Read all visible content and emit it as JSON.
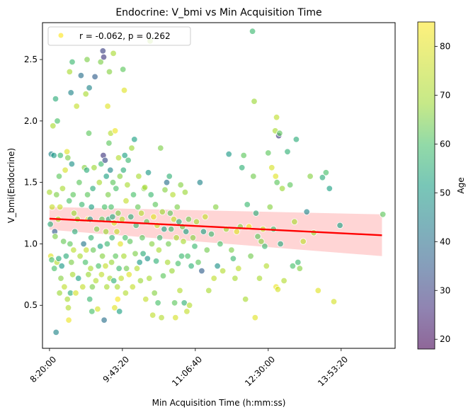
{
  "chart_data": {
    "type": "scatter",
    "title": "Endocrine: V_bmi vs Min Acquisition Time",
    "xlabel": "Min Acquisition Time (h:mm:ss)",
    "ylabel": "V_bmi(Endocrine)",
    "xlim": [
      "8:12:00",
      "14:55:00"
    ],
    "ylim": [
      0.15,
      2.8
    ],
    "x_ticks": [
      "8:20:00",
      "9:43:20",
      "11:06:40",
      "12:30:00",
      "13:53:20"
    ],
    "y_ticks": [
      "0.5",
      "1.0",
      "1.5",
      "2.0",
      "2.5"
    ],
    "legend": {
      "label": "r = -0.062, p = 0.262",
      "location": "top-left"
    },
    "colorbar": {
      "label": "Age",
      "range": [
        18,
        85
      ],
      "ticks": [
        "20",
        "30",
        "40",
        "50",
        "60",
        "70",
        "80"
      ],
      "colormap": "viridis"
    },
    "regression": {
      "x": [
        "8:20:00",
        "14:40:00"
      ],
      "y": [
        1.205,
        1.07
      ],
      "ci_lower": [
        1.115,
        0.9
      ],
      "ci_upper": [
        1.3,
        1.24
      ],
      "color": "#ff0000",
      "band_color": "#ffb3b3"
    },
    "point_style": {
      "alpha": 0.65,
      "edge_color": "#ffffff"
    },
    "points": [
      [
        "8:20:00",
        1.42,
        70
      ],
      [
        "8:21:00",
        1.16,
        55
      ],
      [
        "8:21:30",
        0.9,
        80
      ],
      [
        "8:22:00",
        1.73,
        45
      ],
      [
        "8:22:30",
        0.87,
        60
      ],
      [
        "8:23:00",
        1.3,
        75
      ],
      [
        "8:24:00",
        1.96,
        70
      ],
      [
        "8:25:00",
        1.72,
        50
      ],
      [
        "8:25:30",
        0.8,
        60
      ],
      [
        "8:26:00",
        1.1,
        35
      ],
      [
        "8:26:30",
        1.06,
        65
      ],
      [
        "8:27:00",
        2.18,
        55
      ],
      [
        "8:27:30",
        0.28,
        45
      ],
      [
        "8:28:00",
        1.4,
        65
      ],
      [
        "8:28:30",
        0.85,
        72
      ],
      [
        "8:29:00",
        2.0,
        60
      ],
      [
        "8:30:00",
        1.2,
        70
      ],
      [
        "8:30:30",
        0.88,
        55
      ],
      [
        "8:31:00",
        1.55,
        62
      ],
      [
        "8:31:30",
        0.6,
        68
      ],
      [
        "8:32:00",
        1.3,
        75
      ],
      [
        "8:32:30",
        1.72,
        58
      ],
      [
        "8:33:00",
        0.72,
        66
      ],
      [
        "8:34:00",
        0.82,
        50
      ],
      [
        "8:35:00",
        1.45,
        70
      ],
      [
        "8:36:00",
        1.02,
        63
      ],
      [
        "8:37:00",
        0.65,
        74
      ],
      [
        "8:38:00",
        1.6,
        78
      ],
      [
        "8:39:00",
        0.9,
        55
      ],
      [
        "8:40:00",
        1.75,
        80
      ],
      [
        "8:40:30",
        0.55,
        70
      ],
      [
        "8:41:00",
        1.7,
        65
      ],
      [
        "8:41:30",
        0.48,
        72
      ],
      [
        "8:42:00",
        0.38,
        82
      ],
      [
        "8:42:30",
        1.35,
        60
      ],
      [
        "8:43:00",
        2.4,
        70
      ],
      [
        "8:43:30",
        1.0,
        62
      ],
      [
        "8:44:00",
        0.6,
        55
      ],
      [
        "8:44:30",
        2.23,
        45
      ],
      [
        "8:45:00",
        0.85,
        65
      ],
      [
        "8:45:30",
        1.65,
        48
      ],
      [
        "8:46:00",
        2.48,
        58
      ],
      [
        "8:46:30",
        0.75,
        70
      ],
      [
        "8:47:00",
        1.4,
        62
      ],
      [
        "8:47:30",
        0.95,
        73
      ],
      [
        "8:48:00",
        1.25,
        68
      ],
      [
        "8:49:00",
        1.1,
        55
      ],
      [
        "8:50:00",
        0.6,
        78
      ],
      [
        "8:51:00",
        2.12,
        75
      ],
      [
        "8:52:00",
        1.2,
        68
      ],
      [
        "8:53:00",
        0.72,
        52
      ],
      [
        "8:54:00",
        1.5,
        62
      ],
      [
        "8:55:00",
        0.9,
        70
      ],
      [
        "8:56:00",
        2.37,
        40
      ],
      [
        "8:57:00",
        1.32,
        58
      ],
      [
        "8:58:00",
        0.65,
        75
      ],
      [
        "8:59:00",
        1.0,
        42
      ],
      [
        "9:00:00",
        1.62,
        66
      ],
      [
        "9:01:00",
        0.85,
        60
      ],
      [
        "9:01:30",
        2.22,
        70
      ],
      [
        "9:02:00",
        0.95,
        75
      ],
      [
        "9:02:30",
        1.6,
        55
      ],
      [
        "9:03:00",
        2.5,
        65
      ],
      [
        "9:03:30",
        1.4,
        62
      ],
      [
        "9:04:00",
        1.2,
        80
      ],
      [
        "9:04:30",
        0.75,
        68
      ],
      [
        "9:05:00",
        1.9,
        62
      ],
      [
        "9:05:30",
        2.27,
        45
      ],
      [
        "9:06:00",
        0.55,
        58
      ],
      [
        "9:06:30",
        1.2,
        48
      ],
      [
        "9:07:00",
        0.8,
        70
      ],
      [
        "9:07:30",
        1.05,
        57
      ],
      [
        "9:08:00",
        1.3,
        52
      ],
      [
        "9:08:30",
        0.45,
        60
      ],
      [
        "9:09:00",
        0.65,
        65
      ],
      [
        "9:09:30",
        1.45,
        55
      ],
      [
        "9:10:00",
        0.95,
        63
      ],
      [
        "9:11:00",
        1.62,
        68
      ],
      [
        "9:12:00",
        2.36,
        36
      ],
      [
        "9:13:00",
        0.7,
        72
      ],
      [
        "9:14:00",
        1.12,
        65
      ],
      [
        "9:15:00",
        0.47,
        78
      ],
      [
        "9:16:00",
        0.82,
        60
      ],
      [
        "9:17:00",
        1.5,
        70
      ],
      [
        "9:18:00",
        0.98,
        52
      ],
      [
        "9:18:30",
        2.48,
        65
      ],
      [
        "9:19:00",
        1.65,
        58
      ],
      [
        "9:19:30",
        0.75,
        74
      ],
      [
        "9:20:00",
        1.2,
        62
      ],
      [
        "9:20:30",
        0.9,
        66
      ],
      [
        "9:21:00",
        2.57,
        30
      ],
      [
        "9:21:30",
        1.72,
        28
      ],
      [
        "9:22:00",
        2.52,
        28
      ],
      [
        "9:22:30",
        0.38,
        40
      ],
      [
        "9:23:00",
        1.3,
        60
      ],
      [
        "9:23:30",
        1.68,
        32
      ],
      [
        "9:24:00",
        0.82,
        75
      ],
      [
        "9:24:30",
        1.1,
        68
      ],
      [
        "9:25:00",
        1.55,
        52
      ],
      [
        "9:25:30",
        0.65,
        70
      ],
      [
        "9:26:00",
        1.0,
        58
      ],
      [
        "9:26:30",
        2.12,
        80
      ],
      [
        "9:27:00",
        1.4,
        65
      ],
      [
        "9:27:30",
        1.2,
        55
      ],
      [
        "9:28:00",
        1.82,
        62
      ],
      [
        "9:28:30",
        2.4,
        66
      ],
      [
        "9:29:00",
        0.72,
        70
      ],
      [
        "9:29:30",
        1.6,
        46
      ],
      [
        "9:30:00",
        1.9,
        72
      ],
      [
        "9:30:30",
        1.3,
        60
      ],
      [
        "9:31:00",
        0.85,
        68
      ],
      [
        "9:31:30",
        1.05,
        57
      ],
      [
        "9:32:00",
        1.22,
        54
      ],
      [
        "9:32:30",
        1.5,
        62
      ],
      [
        "9:33:00",
        2.55,
        70
      ],
      [
        "9:33:30",
        0.7,
        56
      ],
      [
        "9:34:00",
        1.17,
        78
      ],
      [
        "9:34:30",
        0.48,
        80
      ],
      [
        "9:35:00",
        1.92,
        82
      ],
      [
        "9:35:30",
        0.9,
        62
      ],
      [
        "9:36:00",
        1.45,
        60
      ],
      [
        "9:37:00",
        1.1,
        75
      ],
      [
        "9:37:30",
        0.65,
        70
      ],
      [
        "9:38:00",
        0.55,
        84
      ],
      [
        "9:38:30",
        1.25,
        65
      ],
      [
        "9:39:00",
        1.7,
        72
      ],
      [
        "9:39:30",
        0.8,
        58
      ],
      [
        "9:40:00",
        0.45,
        52
      ],
      [
        "9:40:30",
        1.55,
        66
      ],
      [
        "9:41:00",
        1.0,
        80
      ],
      [
        "9:42:00",
        0.72,
        74
      ],
      [
        "9:43:00",
        1.2,
        72
      ],
      [
        "9:44:00",
        2.42,
        62
      ],
      [
        "9:44:30",
        1.6,
        55
      ],
      [
        "9:45:00",
        0.9,
        70
      ],
      [
        "9:45:30",
        2.25,
        80
      ],
      [
        "9:46:00",
        1.72,
        52
      ],
      [
        "9:46:30",
        1.05,
        60
      ],
      [
        "9:47:00",
        0.6,
        72
      ],
      [
        "9:47:30",
        1.35,
        75
      ],
      [
        "9:48:00",
        0.8,
        64
      ],
      [
        "9:49:00",
        1.48,
        70
      ],
      [
        "9:50:00",
        1.68,
        58
      ],
      [
        "9:51:00",
        0.75,
        80
      ],
      [
        "9:52:00",
        1.02,
        62
      ],
      [
        "9:53:00",
        1.22,
        55
      ],
      [
        "9:54:00",
        1.78,
        68
      ],
      [
        "9:55:00",
        0.65,
        75
      ],
      [
        "9:56:00",
        1.4,
        60
      ],
      [
        "9:57:00",
        1.85,
        52
      ],
      [
        "9:58:00",
        0.92,
        65
      ],
      [
        "9:59:00",
        1.15,
        58
      ],
      [
        "10:00:00",
        0.8,
        72
      ],
      [
        "10:01:00",
        1.3,
        63
      ],
      [
        "10:02:00",
        1.55,
        70
      ],
      [
        "10:03:00",
        0.85,
        50
      ],
      [
        "10:04:00",
        0.7,
        68
      ],
      [
        "10:05:00",
        1.25,
        72
      ],
      [
        "10:06:00",
        1.05,
        62
      ],
      [
        "10:07:00",
        0.92,
        55
      ],
      [
        "10:08:00",
        1.45,
        66
      ],
      [
        "10:09:00",
        1.46,
        70
      ],
      [
        "10:10:00",
        0.55,
        75
      ],
      [
        "10:11:00",
        1.18,
        62
      ],
      [
        "10:12:00",
        0.88,
        48
      ],
      [
        "10:13:00",
        1.58,
        50
      ],
      [
        "10:14:00",
        0.72,
        70
      ],
      [
        "10:15:00",
        2.65,
        68
      ],
      [
        "10:16:00",
        1.4,
        58
      ],
      [
        "10:17:00",
        1.0,
        66
      ],
      [
        "10:18:00",
        0.42,
        74
      ],
      [
        "10:19:00",
        1.22,
        80
      ],
      [
        "10:20:00",
        0.6,
        66
      ],
      [
        "10:21:00",
        1.32,
        62
      ],
      [
        "10:22:00",
        0.86,
        56
      ],
      [
        "10:23:00",
        1.15,
        75
      ],
      [
        "10:24:00",
        0.52,
        60
      ],
      [
        "10:25:00",
        0.95,
        70
      ],
      [
        "10:26:00",
        1.05,
        58
      ],
      [
        "10:27:00",
        1.78,
        65
      ],
      [
        "10:28:00",
        0.4,
        72
      ],
      [
        "10:29:00",
        1.26,
        68
      ],
      [
        "10:30:00",
        0.74,
        62
      ],
      [
        "10:31:00",
        1.12,
        52
      ],
      [
        "10:32:00",
        1.44,
        66
      ],
      [
        "10:34:00",
        1.5,
        40
      ],
      [
        "10:35:00",
        0.85,
        70
      ],
      [
        "10:36:00",
        1.0,
        64
      ],
      [
        "10:37:00",
        1.55,
        56
      ],
      [
        "10:38:00",
        1.25,
        62
      ],
      [
        "10:39:00",
        1.12,
        58
      ],
      [
        "10:40:00",
        0.78,
        68
      ],
      [
        "10:41:00",
        1.4,
        72
      ],
      [
        "10:42:00",
        1.2,
        75
      ],
      [
        "10:43:00",
        0.52,
        62
      ],
      [
        "10:44:00",
        0.4,
        78
      ],
      [
        "10:45:00",
        1.05,
        70
      ],
      [
        "10:46:00",
        1.3,
        65
      ],
      [
        "10:47:00",
        0.84,
        60
      ],
      [
        "10:48:00",
        1.18,
        55
      ],
      [
        "10:49:00",
        0.62,
        72
      ],
      [
        "10:50:00",
        1.48,
        66
      ],
      [
        "10:51:00",
        0.9,
        58
      ],
      [
        "10:52:00",
        1.14,
        64
      ],
      [
        "10:53:00",
        1.02,
        70
      ],
      [
        "10:54:00",
        0.52,
        56
      ],
      [
        "10:55:00",
        1.42,
        68
      ],
      [
        "10:56:00",
        1.1,
        52
      ],
      [
        "10:57:00",
        0.45,
        75
      ],
      [
        "10:58:00",
        0.9,
        60
      ],
      [
        "10:59:00",
        1.2,
        64
      ],
      [
        "11:00:00",
        0.5,
        72
      ],
      [
        "11:02:00",
        0.82,
        56
      ],
      [
        "11:04:00",
        1.05,
        66
      ],
      [
        "11:06:00",
        0.98,
        58
      ],
      [
        "11:08:00",
        1.18,
        70
      ],
      [
        "11:10:00",
        0.85,
        62
      ],
      [
        "11:12:00",
        1.5,
        45
      ],
      [
        "11:14:00",
        0.78,
        36
      ],
      [
        "11:16:00",
        1.1,
        52
      ],
      [
        "11:18:00",
        1.22,
        75
      ],
      [
        "11:20:00",
        0.95,
        64
      ],
      [
        "11:22:00",
        0.62,
        70
      ],
      [
        "11:25:00",
        1.08,
        58
      ],
      [
        "11:28:00",
        0.72,
        74
      ],
      [
        "11:30:00",
        1.3,
        66
      ],
      [
        "11:32:00",
        0.82,
        48
      ],
      [
        "11:35:00",
        1.0,
        60
      ],
      [
        "11:38:00",
        0.78,
        72
      ],
      [
        "11:42:00",
        1.12,
        68
      ],
      [
        "11:45:00",
        1.73,
        50
      ],
      [
        "11:48:00",
        0.95,
        65
      ],
      [
        "11:50:00",
        0.88,
        58
      ],
      [
        "11:52:00",
        0.72,
        70
      ],
      [
        "11:54:00",
        1.1,
        80
      ],
      [
        "11:56:00",
        0.8,
        74
      ],
      [
        "11:58:00",
        1.14,
        66
      ],
      [
        "12:00:00",
        1.62,
        56
      ],
      [
        "12:02:00",
        1.72,
        62
      ],
      [
        "12:04:00",
        0.55,
        70
      ],
      [
        "12:06:00",
        1.32,
        58
      ],
      [
        "12:08:00",
        1.14,
        82
      ],
      [
        "12:10:00",
        0.9,
        64
      ],
      [
        "12:12:00",
        2.73,
        58
      ],
      [
        "12:13:00",
        1.55,
        64
      ],
      [
        "12:14:00",
        2.16,
        68
      ],
      [
        "12:15:00",
        0.4,
        80
      ],
      [
        "12:16:00",
        1.25,
        55
      ],
      [
        "12:18:00",
        1.06,
        62
      ],
      [
        "12:20:00",
        0.72,
        70
      ],
      [
        "12:22:00",
        1.02,
        66
      ],
      [
        "12:24:00",
        1.12,
        75
      ],
      [
        "12:26:00",
        0.98,
        58
      ],
      [
        "12:28:00",
        0.82,
        72
      ],
      [
        "12:30:00",
        1.74,
        62
      ],
      [
        "12:32:00",
        1.3,
        66
      ],
      [
        "12:34:00",
        1.62,
        78
      ],
      [
        "12:36:00",
        1.12,
        60
      ],
      [
        "12:38:00",
        1.92,
        70
      ],
      [
        "12:38:30",
        1.55,
        80
      ],
      [
        "12:39:00",
        0.65,
        82
      ],
      [
        "12:39:30",
        2.03,
        74
      ],
      [
        "12:40:00",
        1.5,
        62
      ],
      [
        "12:41:00",
        0.63,
        78
      ],
      [
        "12:42:00",
        1.88,
        28
      ],
      [
        "12:43:00",
        1.9,
        62
      ],
      [
        "12:44:00",
        1.0,
        54
      ],
      [
        "12:46:00",
        1.45,
        68
      ],
      [
        "12:48:00",
        0.7,
        72
      ],
      [
        "12:52:00",
        1.75,
        56
      ],
      [
        "12:55:00",
        1.48,
        62
      ],
      [
        "12:58:00",
        0.82,
        60
      ],
      [
        "13:00:00",
        1.18,
        70
      ],
      [
        "13:02:00",
        1.85,
        55
      ],
      [
        "13:04:00",
        0.85,
        58
      ],
      [
        "13:06:00",
        0.8,
        66
      ],
      [
        "13:10:00",
        1.02,
        74
      ],
      [
        "13:14:00",
        1.26,
        45
      ],
      [
        "13:18:00",
        1.55,
        66
      ],
      [
        "13:22:00",
        1.09,
        68
      ],
      [
        "13:27:00",
        0.62,
        80
      ],
      [
        "13:32:00",
        1.54,
        55
      ],
      [
        "13:36:00",
        1.58,
        60
      ],
      [
        "13:40:00",
        1.45,
        52
      ],
      [
        "13:45:00",
        0.53,
        78
      ],
      [
        "13:52:00",
        1.15,
        52
      ],
      [
        "14:41:00",
        1.24,
        62
      ]
    ]
  }
}
